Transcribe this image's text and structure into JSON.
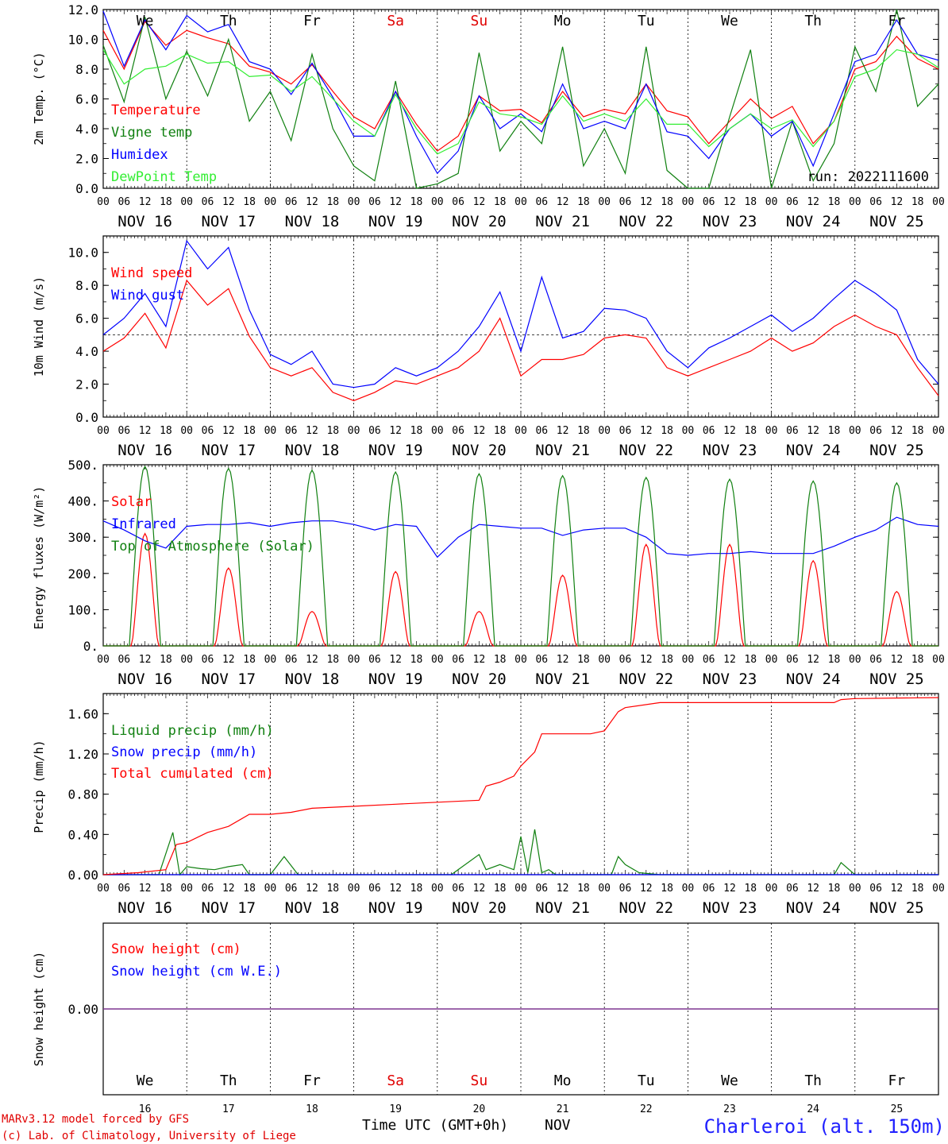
{
  "page": {
    "credit_line1": "MARv3.12 model forced by GFS",
    "credit_line2": "(c) Lab. of Climatology, University of Liege",
    "time_label": "Time UTC (GMT+0h)",
    "month_label": "NOV",
    "station": "Charleroi (alt. 150m)",
    "run_label": "run: 2022111600"
  },
  "time_axis": {
    "hour_labels": [
      "00",
      "06",
      "12",
      "18"
    ],
    "date_labels": [
      "NOV 16",
      "NOV 17",
      "NOV 18",
      "NOV 19",
      "NOV 20",
      "NOV 21",
      "NOV 22",
      "NOV 23",
      "NOV 24",
      "NOV 25"
    ],
    "day_names": [
      "We",
      "Th",
      "Fr",
      "Sa",
      "Su",
      "Mo",
      "Tu",
      "We",
      "Th",
      "Fr"
    ],
    "day_name_colors": [
      "#000000",
      "#000000",
      "#000000",
      "#e00000",
      "#e00000",
      "#000000",
      "#000000",
      "#000000",
      "#000000",
      "#000000"
    ],
    "day_numbers": [
      "16",
      "17",
      "18",
      "19",
      "20",
      "21",
      "22",
      "23",
      "24",
      "25"
    ]
  },
  "colors": {
    "red": "#ff0000",
    "green": "#108010",
    "blue": "#0000ff",
    "lightgreen": "#33ee33",
    "purple": "#7a2e8c",
    "credit": "#e00000",
    "station": "#2020ff"
  },
  "chart_data": [
    {
      "type": "line",
      "ylabel": "2m Temp. (°C)",
      "ylim": [
        0,
        12
      ],
      "ytick_labels": [
        "0.0",
        "2.0",
        "4.0",
        "6.0",
        "8.0",
        "10.0",
        "12.0"
      ],
      "x_unit": "hours since NOV 16 00 UTC",
      "series": [
        {
          "name": "Temperature",
          "color": "#ff0000",
          "x": [
            0,
            6,
            12,
            18,
            24,
            30,
            36,
            42,
            48,
            54,
            60,
            66,
            72,
            78,
            84,
            90,
            96,
            102,
            108,
            114,
            120,
            126,
            132,
            138,
            144,
            150,
            156,
            162,
            168,
            174,
            180,
            186,
            192,
            198,
            204,
            210,
            216,
            222,
            228,
            234,
            240
          ],
          "y": [
            10.6,
            8.0,
            11.2,
            9.6,
            10.6,
            10.1,
            9.7,
            8.2,
            7.8,
            7.0,
            8.3,
            6.5,
            4.8,
            4.0,
            6.5,
            4.3,
            2.5,
            3.5,
            6.2,
            5.2,
            5.3,
            4.4,
            6.5,
            4.8,
            5.3,
            5.0,
            7.0,
            5.2,
            4.8,
            3.0,
            4.5,
            6.0,
            4.7,
            5.5,
            3.0,
            4.5,
            8.0,
            8.5,
            10.2,
            8.7,
            8.0
          ]
        },
        {
          "name": "Vigne temp",
          "color": "#108010",
          "x": [
            0,
            6,
            12,
            18,
            24,
            30,
            36,
            42,
            48,
            54,
            60,
            66,
            72,
            78,
            84,
            90,
            96,
            102,
            108,
            114,
            120,
            126,
            132,
            138,
            144,
            150,
            156,
            162,
            168,
            174,
            180,
            186,
            192,
            198,
            204,
            210,
            216,
            222,
            228,
            234,
            240
          ],
          "y": [
            9.6,
            5.8,
            11.5,
            6.0,
            9.2,
            6.2,
            10.0,
            4.5,
            6.5,
            3.2,
            9.0,
            4.0,
            1.5,
            0.5,
            7.2,
            0.0,
            0.3,
            1.0,
            9.1,
            2.5,
            4.5,
            3.0,
            9.5,
            1.5,
            4.0,
            1.0,
            9.5,
            1.2,
            0.0,
            0.0,
            4.8,
            9.3,
            0.0,
            4.5,
            0.5,
            3.0,
            9.5,
            6.5,
            12.0,
            5.5,
            7.0
          ]
        },
        {
          "name": "Humidex",
          "color": "#0000ff",
          "x": [
            0,
            6,
            12,
            18,
            24,
            30,
            36,
            42,
            48,
            54,
            60,
            66,
            72,
            78,
            84,
            90,
            96,
            102,
            108,
            114,
            120,
            126,
            132,
            138,
            144,
            150,
            156,
            162,
            168,
            174,
            180,
            186,
            192,
            198,
            204,
            210,
            216,
            222,
            228,
            234,
            240
          ],
          "y": [
            11.9,
            8.2,
            11.3,
            9.3,
            11.6,
            10.5,
            11.0,
            8.5,
            8.0,
            6.3,
            8.4,
            6.1,
            3.5,
            3.5,
            6.5,
            3.5,
            1.0,
            2.5,
            6.2,
            4.0,
            5.0,
            3.8,
            7.0,
            4.0,
            4.5,
            4.0,
            7.0,
            3.8,
            3.5,
            2.0,
            4.0,
            5.0,
            3.5,
            4.5,
            1.5,
            5.0,
            8.5,
            9.0,
            11.3,
            9.0,
            8.6
          ]
        },
        {
          "name": "DewPoint Temp",
          "color": "#33ee33",
          "x": [
            0,
            6,
            12,
            18,
            24,
            30,
            36,
            42,
            48,
            54,
            60,
            66,
            72,
            78,
            84,
            90,
            96,
            102,
            108,
            114,
            120,
            126,
            132,
            138,
            144,
            150,
            156,
            162,
            168,
            174,
            180,
            186,
            192,
            198,
            204,
            210,
            216,
            222,
            228,
            234,
            240
          ],
          "y": [
            9.3,
            7.0,
            8.0,
            8.2,
            9.0,
            8.4,
            8.5,
            7.5,
            7.6,
            6.5,
            7.5,
            6.0,
            4.5,
            3.5,
            6.3,
            4.0,
            2.3,
            3.0,
            5.8,
            5.0,
            4.8,
            4.3,
            6.2,
            4.5,
            5.0,
            4.5,
            6.0,
            4.3,
            4.3,
            2.8,
            4.0,
            5.0,
            4.0,
            4.6,
            2.8,
            4.5,
            7.5,
            8.0,
            9.3,
            9.0,
            8.1
          ]
        }
      ]
    },
    {
      "type": "line",
      "ylabel": "10m Wind (m/s)",
      "ylim": [
        0,
        11
      ],
      "ytick_labels": [
        "0.0",
        "2.0",
        "4.0",
        "6.0",
        "8.0",
        "10.0"
      ],
      "reference_line": 5,
      "x_unit": "hours since NOV 16 00 UTC",
      "series": [
        {
          "name": "Wind speed",
          "color": "#ff0000",
          "x": [
            0,
            6,
            12,
            18,
            24,
            30,
            36,
            42,
            48,
            54,
            60,
            66,
            72,
            78,
            84,
            90,
            96,
            102,
            108,
            114,
            120,
            126,
            132,
            138,
            144,
            150,
            156,
            162,
            168,
            174,
            180,
            186,
            192,
            198,
            204,
            210,
            216,
            222,
            228,
            234,
            240
          ],
          "y": [
            4.0,
            4.8,
            6.3,
            4.2,
            8.3,
            6.8,
            7.8,
            4.9,
            3.0,
            2.5,
            3.0,
            1.5,
            1.0,
            1.5,
            2.2,
            2.0,
            2.5,
            3.0,
            4.0,
            6.0,
            2.5,
            3.5,
            3.5,
            3.8,
            4.8,
            5.0,
            4.8,
            3.0,
            2.5,
            3.0,
            3.5,
            4.0,
            4.8,
            4.0,
            4.5,
            5.5,
            6.2,
            5.5,
            5.0,
            3.0,
            1.3
          ]
        },
        {
          "name": "Wind gust",
          "color": "#0000ff",
          "x": [
            0,
            6,
            12,
            18,
            24,
            30,
            36,
            42,
            48,
            54,
            60,
            66,
            72,
            78,
            84,
            90,
            96,
            102,
            108,
            114,
            120,
            126,
            132,
            138,
            144,
            150,
            156,
            162,
            168,
            174,
            180,
            186,
            192,
            198,
            204,
            210,
            216,
            222,
            228,
            234,
            240
          ],
          "y": [
            5.0,
            6.0,
            7.5,
            5.5,
            10.7,
            9.0,
            10.3,
            6.5,
            3.8,
            3.2,
            4.0,
            2.0,
            1.8,
            2.0,
            3.0,
            2.5,
            3.0,
            4.0,
            5.5,
            7.6,
            4.0,
            8.5,
            4.8,
            5.2,
            6.6,
            6.5,
            6.0,
            4.0,
            3.0,
            4.2,
            4.8,
            5.5,
            6.2,
            5.2,
            6.0,
            7.2,
            8.3,
            7.5,
            6.5,
            3.5,
            2.0
          ]
        }
      ]
    },
    {
      "type": "line",
      "ylabel": "Energy fluxes (W/m²)",
      "ylim": [
        0,
        500
      ],
      "ytick_labels": [
        "0.",
        "100.",
        "200.",
        "300.",
        "400.",
        "500."
      ],
      "x_unit": "hours since NOV 16 00 UTC",
      "series": [
        {
          "name": "Solar",
          "color": "#ff0000",
          "day_peaks": [
            310,
            215,
            95,
            205,
            95,
            195,
            280,
            280,
            235,
            150
          ]
        },
        {
          "name": "Infrared",
          "color": "#0000ff",
          "x": [
            0,
            6,
            12,
            18,
            24,
            30,
            36,
            42,
            48,
            54,
            60,
            66,
            72,
            78,
            84,
            90,
            96,
            102,
            108,
            114,
            120,
            126,
            132,
            138,
            144,
            150,
            156,
            162,
            168,
            174,
            180,
            186,
            192,
            198,
            204,
            210,
            216,
            222,
            228,
            234,
            240
          ],
          "y": [
            345,
            320,
            290,
            270,
            330,
            335,
            335,
            340,
            330,
            340,
            345,
            345,
            335,
            320,
            335,
            330,
            245,
            300,
            335,
            330,
            325,
            325,
            305,
            320,
            325,
            325,
            300,
            255,
            250,
            255,
            255,
            260,
            255,
            255,
            255,
            275,
            300,
            320,
            355,
            335,
            330
          ]
        },
        {
          "name": "Top of Atmosphere (Solar)",
          "color": "#108010",
          "day_peaks": [
            495,
            490,
            485,
            480,
            475,
            470,
            465,
            460,
            455,
            450
          ]
        }
      ]
    },
    {
      "type": "line",
      "ylabel": "Precip (mm/h)",
      "ylim": [
        0,
        1.8
      ],
      "ytick_labels": [
        "0.00",
        "0.40",
        "0.80",
        "1.20",
        "1.60"
      ],
      "x_unit": "hours since NOV 16 00 UTC",
      "series": [
        {
          "name": "Liquid precip (mm/h)",
          "color": "#108010",
          "x": [
            0,
            16,
            20,
            22,
            24,
            28,
            32,
            36,
            40,
            42,
            48,
            52,
            56,
            60,
            70,
            80,
            90,
            100,
            108,
            110,
            114,
            118,
            120,
            122,
            124,
            126,
            128,
            130,
            136,
            146,
            148,
            150,
            154,
            160,
            170,
            180,
            190,
            200,
            210,
            212,
            216,
            240
          ],
          "y": [
            0,
            0,
            0.42,
            0,
            0.08,
            0.06,
            0.05,
            0.08,
            0.1,
            0,
            0,
            0.18,
            0,
            0,
            0,
            0,
            0,
            0,
            0.2,
            0.05,
            0.1,
            0.05,
            0.38,
            0.02,
            0.45,
            0.02,
            0.05,
            0,
            0,
            0,
            0.18,
            0.1,
            0.02,
            0,
            0,
            0,
            0,
            0,
            0,
            0.12,
            0,
            0
          ]
        },
        {
          "name": "Snow precip (mm/h)",
          "color": "#0000ff",
          "x": [
            0,
            240
          ],
          "y": [
            0,
            0
          ]
        },
        {
          "name": "Total cumulated (cm)",
          "color": "#ff0000",
          "x": [
            0,
            10,
            18,
            21,
            24,
            30,
            36,
            42,
            48,
            54,
            60,
            72,
            84,
            96,
            108,
            110,
            114,
            118,
            120,
            122,
            124,
            126,
            140,
            144,
            148,
            150,
            160,
            180,
            210,
            212,
            216,
            240
          ],
          "y": [
            0,
            0.02,
            0.05,
            0.3,
            0.32,
            0.42,
            0.48,
            0.6,
            0.6,
            0.62,
            0.66,
            0.68,
            0.7,
            0.72,
            0.74,
            0.88,
            0.92,
            0.98,
            1.08,
            1.15,
            1.22,
            1.4,
            1.4,
            1.43,
            1.62,
            1.66,
            1.71,
            1.71,
            1.71,
            1.74,
            1.75,
            1.76
          ]
        }
      ]
    },
    {
      "type": "line",
      "ylabel": "Snow height (cm)",
      "ytick_labels": [
        "0.00"
      ],
      "x_unit": "hours since NOV 16 00 UTC",
      "series": [
        {
          "name": "Snow height (cm)",
          "color": "#ff0000",
          "x": [
            0,
            240
          ],
          "y": [
            0,
            0
          ]
        },
        {
          "name": "Snow height (cm W.E.)",
          "color": "#0000ff",
          "x": [
            0,
            240
          ],
          "y": [
            0,
            0
          ]
        }
      ]
    }
  ]
}
